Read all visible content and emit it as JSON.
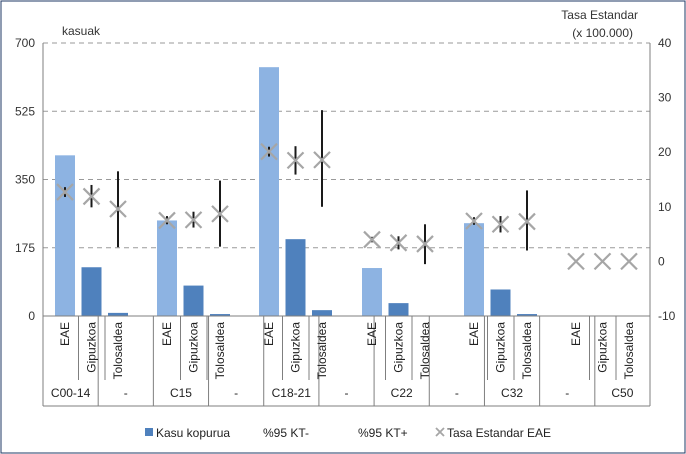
{
  "chart_data": {
    "type": "bar",
    "title": "",
    "ylabel_left": "kasuak",
    "ylabel_right_line1": "Tasa Estandar",
    "ylabel_right_line2": "(x 100.000)",
    "ylim_left": [
      0,
      700
    ],
    "yticks_left": [
      "0",
      "175",
      "350",
      "525",
      "700"
    ],
    "ylim_right": [
      -10,
      40
    ],
    "yticks_right": [
      "-10",
      "0",
      "10",
      "20",
      "30",
      "40"
    ],
    "grid": "dashed horizontal",
    "groups": [
      "C00-14",
      "-",
      "C15",
      "-",
      "C18-21",
      "-",
      "C22",
      "-",
      "C32",
      "-",
      "C50"
    ],
    "subcategories": [
      "EAE",
      "Gipuzkoa",
      "Tolosaldea"
    ],
    "series": [
      {
        "name": "Kasu kopurua",
        "axis": "left",
        "values": [
          [
            412,
            125,
            8
          ],
          [
            245,
            78,
            5
          ],
          [
            638,
            197,
            15
          ],
          [
            123,
            33,
            0
          ],
          [
            238,
            68,
            5
          ],
          [
            0,
            0,
            0
          ]
        ]
      },
      {
        "name": "%95 KT-",
        "axis": "right",
        "values": [
          [
            11.8,
            9.9,
            2.6
          ],
          [
            6.8,
            6.2,
            2.7
          ],
          [
            19.2,
            15.9,
            10.0
          ],
          [
            3.5,
            2.2,
            -0.5
          ],
          [
            6.7,
            5.3,
            2.0
          ],
          [
            null,
            null,
            null
          ]
        ]
      },
      {
        "name": "%95 KT+",
        "axis": "right",
        "values": [
          [
            13.6,
            14.0,
            16.5
          ],
          [
            8.3,
            9.1,
            14.8
          ],
          [
            21.0,
            21.1,
            27.7
          ],
          [
            4.5,
            4.6,
            6.8
          ],
          [
            8.1,
            8.3,
            13.0
          ],
          [
            null,
            null,
            null
          ]
        ]
      },
      {
        "name": "Tasa Estandar EAE",
        "axis": "right",
        "values": [
          [
            12.7,
            11.9,
            9.6
          ],
          [
            7.5,
            7.6,
            8.7
          ],
          [
            20.1,
            18.5,
            18.6
          ],
          [
            4.0,
            3.4,
            3.2
          ],
          [
            7.4,
            6.8,
            7.3
          ],
          [
            0,
            0,
            0
          ]
        ]
      }
    ],
    "legend": {
      "position": "bottom",
      "items": [
        "Kasu kopurua",
        "%95 KT-",
        "%95 KT+",
        "Tasa Estandar EAE"
      ]
    },
    "colors": {
      "bar_eae": "#8DB3E2",
      "bar_gipuzkoa": "#4F81BD",
      "bar_tolosaldea": "#4F81BD",
      "errorbar": "#1a1a1a",
      "marker": "#A6A6A6",
      "grid": "#9a9a9a",
      "axis": "#7f7f7f",
      "frame": "#1F3864"
    }
  }
}
